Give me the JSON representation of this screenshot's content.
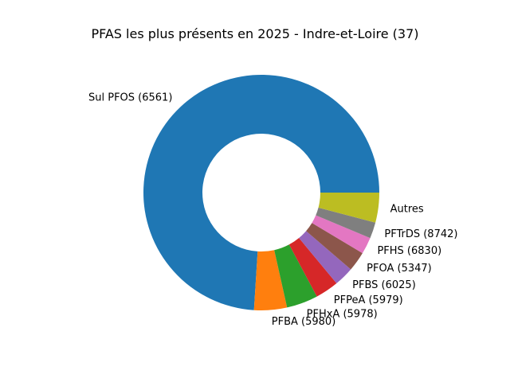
{
  "chart_data": {
    "type": "pie",
    "subtype": "donut",
    "title": "PFAS les plus présents en 2025 - Indre-et-Loire (37)",
    "start_angle_deg": 0,
    "direction": "counterclockwise",
    "slices": [
      {
        "label": "Sul PFOS (6561)",
        "value": 74.0,
        "color": "#1f77b4"
      },
      {
        "label": "PFBA (5980)",
        "value": 4.5,
        "color": "#ff7f0e"
      },
      {
        "label": "PFHxA (5978)",
        "value": 4.3,
        "color": "#2ca02c"
      },
      {
        "label": "PFPeA (5979)",
        "value": 3.2,
        "color": "#d62728"
      },
      {
        "label": "PFBS (6025)",
        "value": 2.7,
        "color": "#9467bd"
      },
      {
        "label": "PFOA (5347)",
        "value": 2.7,
        "color": "#8c564b"
      },
      {
        "label": "PFHS (6830)",
        "value": 2.3,
        "color": "#e377c2"
      },
      {
        "label": "PFTrDS (8742)",
        "value": 2.2,
        "color": "#7f7f7f"
      },
      {
        "label": "Autres",
        "value": 4.1,
        "color": "#bcbd22"
      }
    ]
  }
}
